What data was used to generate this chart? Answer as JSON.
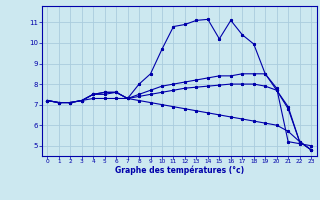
{
  "background_color": "#cce8f0",
  "grid_color": "#aaccdd",
  "line_color": "#0000aa",
  "marker": "*",
  "xlabel": "Graphe des températures (°c)",
  "xlabel_color": "#0000aa",
  "ylim": [
    4.5,
    11.8
  ],
  "xlim": [
    -0.5,
    23.5
  ],
  "yticks": [
    5,
    6,
    7,
    8,
    9,
    10,
    11
  ],
  "xticks": [
    0,
    1,
    2,
    3,
    4,
    5,
    6,
    7,
    8,
    9,
    10,
    11,
    12,
    13,
    14,
    15,
    16,
    17,
    18,
    19,
    20,
    21,
    22,
    23
  ],
  "series": [
    [
      7.2,
      7.1,
      7.1,
      7.2,
      7.5,
      7.6,
      7.6,
      7.3,
      8.0,
      8.5,
      9.7,
      10.8,
      10.9,
      11.1,
      11.15,
      10.2,
      11.1,
      10.4,
      9.95,
      8.5,
      7.7,
      6.8,
      5.2,
      4.8
    ],
    [
      7.2,
      7.1,
      7.1,
      7.2,
      7.5,
      7.6,
      7.6,
      7.3,
      7.5,
      7.7,
      7.9,
      8.0,
      8.1,
      8.2,
      8.3,
      8.4,
      8.4,
      8.5,
      8.5,
      8.5,
      7.8,
      5.2,
      5.1,
      5.0
    ],
    [
      7.2,
      7.1,
      7.1,
      7.2,
      7.5,
      7.5,
      7.6,
      7.3,
      7.4,
      7.5,
      7.6,
      7.7,
      7.8,
      7.85,
      7.9,
      7.95,
      8.0,
      8.0,
      8.0,
      7.9,
      7.7,
      6.9,
      5.2,
      4.8
    ],
    [
      7.2,
      7.1,
      7.1,
      7.2,
      7.3,
      7.3,
      7.3,
      7.3,
      7.2,
      7.1,
      7.0,
      6.9,
      6.8,
      6.7,
      6.6,
      6.5,
      6.4,
      6.3,
      6.2,
      6.1,
      6.0,
      5.7,
      5.2,
      4.8
    ]
  ]
}
